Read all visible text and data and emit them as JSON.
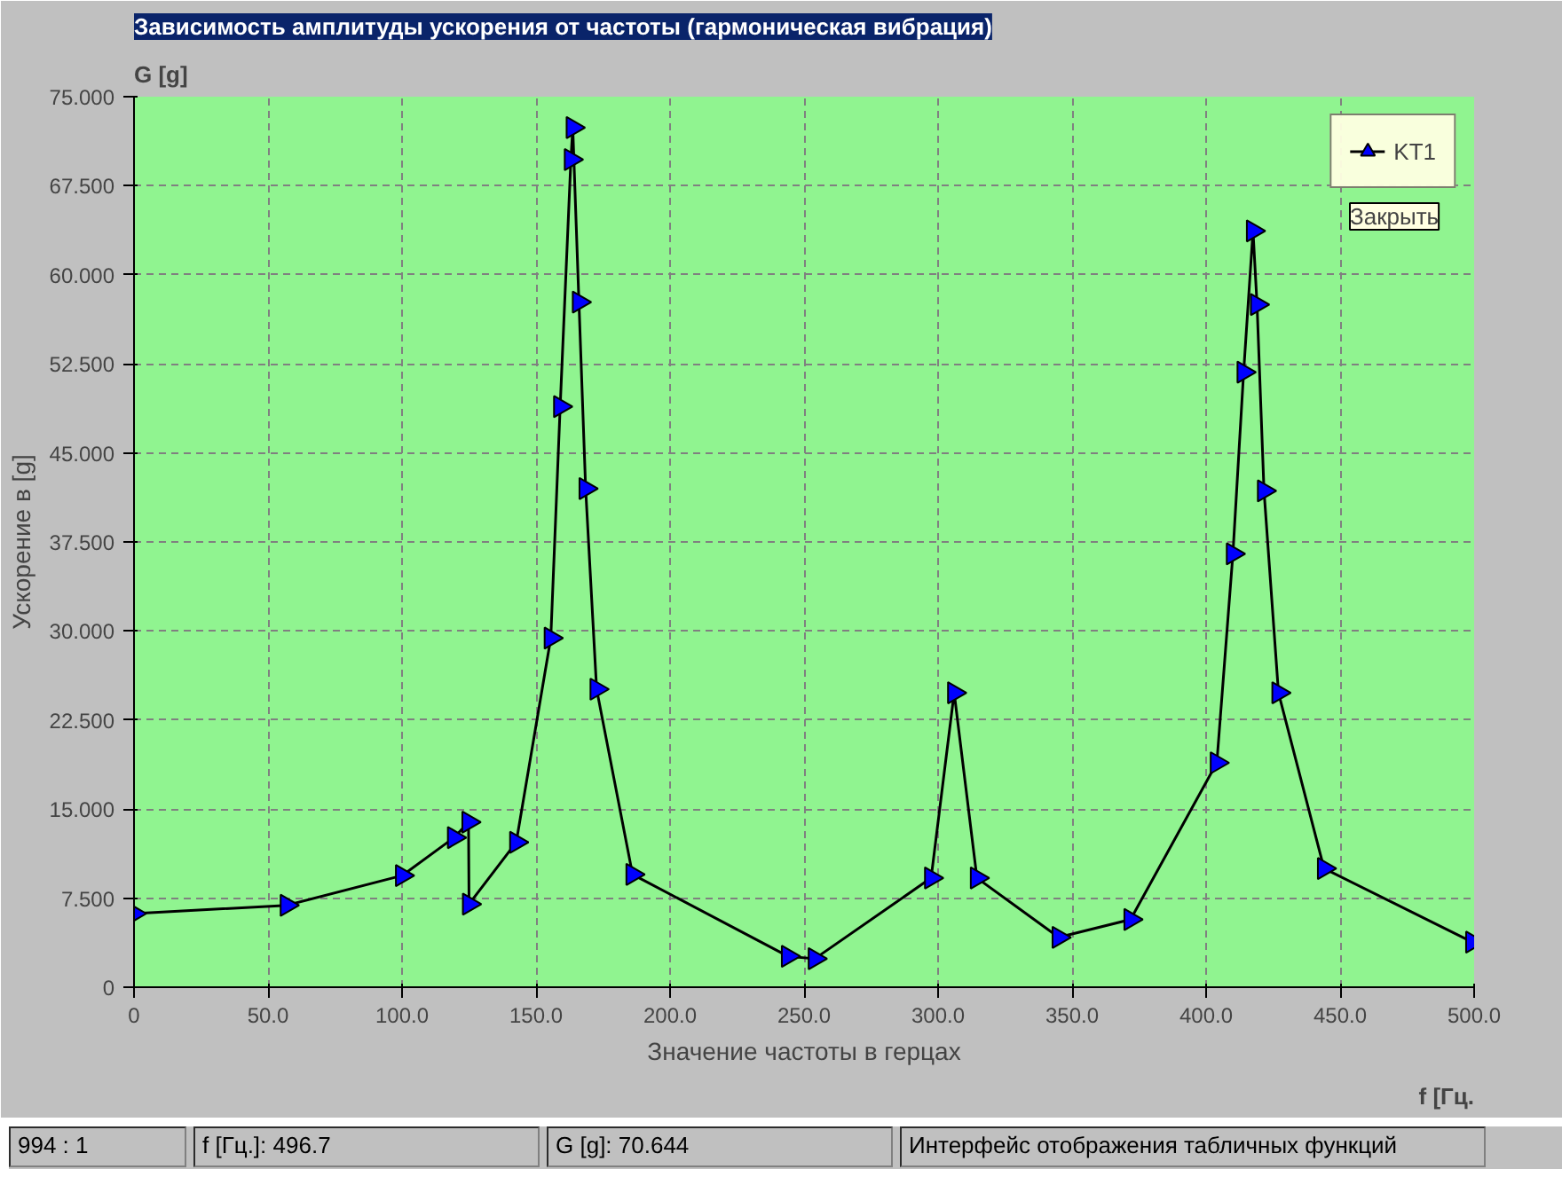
{
  "chart_data": {
    "type": "line",
    "title": "Зависимость амплитуды ускорения от частоты (гармоническая вибрация)",
    "xlabel": "Значение частоты в герцах",
    "ylabel": "Ускорение в [g]",
    "annotations": [
      "G [g]",
      "f [Гц.",
      "Закрыть",
      "994 : 1",
      "f [Гц.]:  496.7",
      "G [g]:  70.644",
      "Интерфейс отображения табличных функций"
    ],
    "x": [
      0,
      57,
      100,
      119.4,
      124.8,
      125,
      142.6,
      155.5,
      159,
      163,
      163.7,
      166,
      168.5,
      172.6,
      186,
      244,
      254,
      297.4,
      306,
      314.5,
      345,
      371.8,
      404,
      410,
      414,
      417.5,
      419,
      421.6,
      427,
      444,
      499.3
    ],
    "series": [
      {
        "name": "KT1",
        "color": "#0000ff",
        "values": [
          6.2,
          6.9,
          9.4,
          12.6,
          13.9,
          7.0,
          12.2,
          29.4,
          48.9,
          69.7,
          72.4,
          57.7,
          42.0,
          25.1,
          9.5,
          2.6,
          2.4,
          9.2,
          24.8,
          9.2,
          4.2,
          5.7,
          18.9,
          36.5,
          51.8,
          63.7,
          57.5,
          41.8,
          24.8,
          10.0,
          3.8
        ]
      }
    ],
    "xlim": [
      0,
      500
    ],
    "ylim": [
      0,
      75
    ],
    "xticks": [
      {
        "value": 0,
        "label": "0"
      },
      {
        "value": 50,
        "label": "50.0"
      },
      {
        "value": 100,
        "label": "100.0"
      },
      {
        "value": 150,
        "label": "150.0"
      },
      {
        "value": 200,
        "label": "200.0"
      },
      {
        "value": 250,
        "label": "250.0"
      },
      {
        "value": 300,
        "label": "300.0"
      },
      {
        "value": 350,
        "label": "350.0"
      },
      {
        "value": 400,
        "label": "400.0"
      },
      {
        "value": 450,
        "label": "450.0"
      },
      {
        "value": 500,
        "label": "500.0"
      }
    ],
    "yticks": [
      {
        "value": 0,
        "label": "0"
      },
      {
        "value": 7.5,
        "label": "7.500"
      },
      {
        "value": 15,
        "label": "15.000"
      },
      {
        "value": 22.5,
        "label": "22.500"
      },
      {
        "value": 30,
        "label": "30.000"
      },
      {
        "value": 37.5,
        "label": "37.500"
      },
      {
        "value": 45,
        "label": "45.000"
      },
      {
        "value": 52.5,
        "label": "52.500"
      },
      {
        "value": 60,
        "label": "60.000"
      },
      {
        "value": 67.5,
        "label": "67.500"
      },
      {
        "value": 75,
        "label": "75.000"
      }
    ],
    "grid": true,
    "legend": "top right",
    "marker": "triangle",
    "line_style": "solid"
  }
}
